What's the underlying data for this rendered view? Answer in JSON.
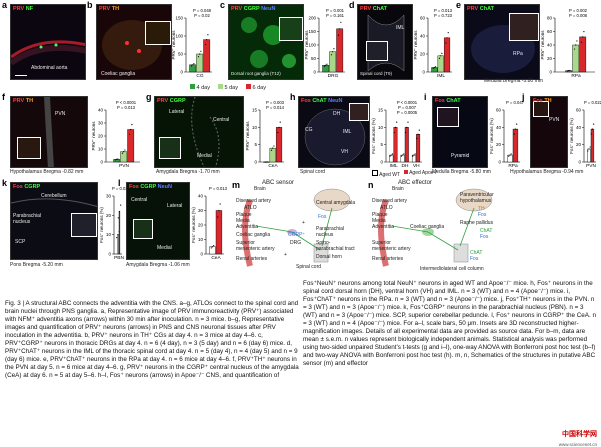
{
  "panels": {
    "a": {
      "letter": "a",
      "label1": "PRV",
      "label2": "NF",
      "label3": "Abdominal aorta",
      "colors": {
        "l1": "#ff4040",
        "l2": "#40ff40"
      }
    },
    "b": {
      "letter": "b",
      "label1": "PRV",
      "label2": "TH",
      "region": "Coeliac ganglia",
      "legend": [
        "4 day",
        "5 day",
        "6 day"
      ],
      "legend_colors": [
        "#2e9e3e",
        "#a8d88a",
        "#d8282c"
      ]
    },
    "c": {
      "letter": "c",
      "label1": "PRV",
      "label2": "CGRP",
      "label3": "NeuN",
      "region": "Dorsal root ganglia (T12)"
    },
    "d": {
      "letter": "d",
      "label1": "PRV",
      "label2": "ChAT",
      "region": "Spinal cord (T9)",
      "lbl_iml": "IML"
    },
    "e": {
      "letter": "e",
      "label1": "PRV",
      "label2": "ChAT",
      "region": "Medulla Bregma -5.80 mm",
      "lbl_rpa": "RPa"
    },
    "f": {
      "letter": "f",
      "label1": "PRV",
      "label2": "TH",
      "region": "Hypothalamus Bregma -0.82 mm",
      "lbl": "PVN"
    },
    "g": {
      "letter": "g",
      "label1": "PRV",
      "label2": "CGRP",
      "region": "Amygdala Bregma -1.70 mm",
      "lbl_lat": "Lateral",
      "lbl_cen": "Central",
      "lbl_med": "Medial"
    },
    "h": {
      "letter": "h",
      "label1": "Fos",
      "label2": "ChAT",
      "label3": "NeuN",
      "region": "Spinal cord",
      "lbl_dh": "DH",
      "lbl_iml": "IML",
      "lbl_cg": "CG",
      "lbl_vh": "VH",
      "legend": [
        "Aged WT",
        "Aged Apoe-/-"
      ]
    },
    "i": {
      "letter": "i",
      "label1": "Fos",
      "label2": "ChAT",
      "region": "Medulla Bregma -5.80 mm",
      "lbl": "Pyramid"
    },
    "j": {
      "letter": "j",
      "label1": "Fos",
      "label2": "TH",
      "region": "Hypothalamus Bregma -0.94 mm",
      "lbl": "PVN"
    },
    "k": {
      "letter": "k",
      "label1": "Fos",
      "label2": "CGRP",
      "region": "Pons Bregma -5.20 mm",
      "lbl_cb": "Cerebellum",
      "lbl_pbn": "Parabrachial nucleus",
      "lbl_scp": "SCP"
    },
    "l": {
      "letter": "l",
      "label1": "Fos",
      "label2": "CGRP",
      "label3": "NeuN",
      "region": "Amygdala Bregma -1.06 mm",
      "lbl_cen": "Central",
      "lbl_lat": "Lateral",
      "lbl_med": "Medial"
    },
    "m": {
      "letter": "m",
      "title": "ABC sensor"
    },
    "n": {
      "letter": "n",
      "title": "ABC effector"
    }
  },
  "chart_data": [
    {
      "panel": "b",
      "type": "bar",
      "ylabel": "PRV⁺ neurons",
      "categories": [
        "CG"
      ],
      "series": [
        {
          "name": "4 day",
          "values": [
            20
          ]
        },
        {
          "name": "5 day",
          "values": [
            50
          ]
        },
        {
          "name": "6 day",
          "values": [
            90
          ]
        }
      ],
      "ylim": [
        0,
        150
      ],
      "yticks": [
        "0",
        "50",
        "100",
        "150"
      ],
      "pvals": [
        "P = 0.048",
        "P = 0.02"
      ]
    },
    {
      "panel": "c",
      "type": "bar",
      "ylabel": "PRV⁺ neurons",
      "categories": [
        "DRG"
      ],
      "series": [
        {
          "name": "4 day",
          "values": [
            25
          ]
        },
        {
          "name": "5 day",
          "values": [
            75
          ]
        },
        {
          "name": "6 day",
          "values": [
            160
          ]
        }
      ],
      "ylim": [
        0,
        200
      ],
      "yticks": [
        "0",
        "50",
        "100",
        "150",
        "200"
      ],
      "pvals": [
        "P = 0.001",
        "P = 0.161"
      ]
    },
    {
      "panel": "d",
      "type": "bar",
      "ylabel": "PRV⁺ neurons",
      "categories": [
        "IML"
      ],
      "series": [
        {
          "name": "4 day",
          "values": [
            5
          ]
        },
        {
          "name": "5 day",
          "values": [
            18
          ]
        },
        {
          "name": "6 day",
          "values": [
            38
          ]
        }
      ],
      "ylim": [
        0,
        60
      ],
      "yticks": [
        "0",
        "20",
        "40",
        "60"
      ],
      "pvals": [
        "P = 0.013",
        "P = 0.723"
      ]
    },
    {
      "panel": "e",
      "type": "bar",
      "ylabel": "PRV⁺ neurons",
      "categories": [
        "RPa"
      ],
      "series": [
        {
          "name": "4 day",
          "values": [
            2
          ]
        },
        {
          "name": "5 day",
          "values": [
            40
          ]
        },
        {
          "name": "6 day",
          "values": [
            52
          ]
        }
      ],
      "ylim": [
        0,
        80
      ],
      "yticks": [
        "0",
        "20",
        "40",
        "60",
        "80"
      ],
      "pvals": [
        "P = 0.002",
        "P = 0.008"
      ]
    },
    {
      "panel": "f",
      "type": "bar",
      "ylabel": "PRV⁺ neurons",
      "categories": [
        "PVN"
      ],
      "series": [
        {
          "name": "4 day",
          "values": [
            2
          ]
        },
        {
          "name": "5 day",
          "values": [
            8
          ]
        },
        {
          "name": "6 day",
          "values": [
            25
          ]
        }
      ],
      "ylim": [
        0,
        40
      ],
      "yticks": [
        "0",
        "10",
        "20",
        "30",
        "40"
      ],
      "pvals": [
        "P < 0.0001",
        "P = 0.013"
      ]
    },
    {
      "panel": "g",
      "type": "bar",
      "ylabel": "PRV⁺ neurons",
      "categories": [
        "CeA"
      ],
      "series": [
        {
          "name": "4 day",
          "values": [
            0
          ]
        },
        {
          "name": "5 day",
          "values": [
            4
          ]
        },
        {
          "name": "6 day",
          "values": [
            10
          ]
        }
      ],
      "ylim": [
        0,
        15
      ],
      "yticks": [
        "0",
        "5",
        "10",
        "15"
      ],
      "pvals": [
        "P = 0.003",
        "P = 0.014"
      ]
    },
    {
      "panel": "h",
      "type": "bar",
      "ylabel": "Fos⁺ neurons (%)",
      "categories": [
        "IML",
        "DH",
        "VH"
      ],
      "series": [
        {
          "name": "Aged WT",
          "values": [
            2,
            2,
            2
          ]
        },
        {
          "name": "Aged Apoe-/-",
          "values": [
            10,
            10,
            8
          ]
        }
      ],
      "ylim": [
        0,
        15
      ],
      "yticks": [
        "0",
        "5",
        "10",
        "15"
      ],
      "pvals": [
        "P < 0.0001",
        "P = 0.007",
        "P = 0.0005"
      ]
    },
    {
      "panel": "i",
      "type": "bar",
      "ylabel": "Fos⁺ neurons (%)",
      "categories": [
        "RPa"
      ],
      "series": [
        {
          "name": "Aged WT",
          "values": [
            8
          ]
        },
        {
          "name": "Aged Apoe-/-",
          "values": [
            38
          ]
        }
      ],
      "ylim": [
        0,
        60
      ],
      "yticks": [
        "0",
        "20",
        "40",
        "60"
      ],
      "pvals": [
        "P = 0.047"
      ]
    },
    {
      "panel": "j",
      "type": "bar",
      "ylabel": "Fos⁺ neurons (%)",
      "categories": [
        "PVN"
      ],
      "series": [
        {
          "name": "Aged WT",
          "values": [
            15
          ]
        },
        {
          "name": "Aged Apoe-/-",
          "values": [
            38
          ]
        }
      ],
      "ylim": [
        0,
        60
      ],
      "yticks": [
        "0",
        "20",
        "40",
        "60"
      ],
      "pvals": [
        "P = 0.022"
      ]
    },
    {
      "panel": "k",
      "type": "bar",
      "ylabel": "Fos⁺ neurons (%)",
      "categories": [
        "PBN"
      ],
      "series": [
        {
          "name": "Aged WT",
          "values": [
            10
          ]
        },
        {
          "name": "Aged Apoe-/-",
          "values": [
            22
          ]
        }
      ],
      "ylim": [
        0,
        30
      ],
      "yticks": [
        "0",
        "10",
        "20",
        "30"
      ],
      "pvals": [
        "P = 0.025"
      ]
    },
    {
      "panel": "l",
      "type": "bar",
      "ylabel": "Fos⁺ neurons (%)",
      "categories": [
        "CeA"
      ],
      "series": [
        {
          "name": "Aged WT",
          "values": [
            5
          ]
        },
        {
          "name": "Aged Apoe-/-",
          "values": [
            30
          ]
        }
      ],
      "ylim": [
        0,
        40
      ],
      "yticks": [
        "0",
        "10",
        "20",
        "30",
        "40"
      ],
      "pvals": [
        "P = 0.013"
      ]
    }
  ],
  "schematic_m": {
    "brain": "Brain",
    "plaque": "Plaque",
    "media": "Media",
    "adventitia": "Adventitia",
    "coeliac": "Coeliac ganglia",
    "superior": "Superior mesenteric artery",
    "renal": "Renal arteries",
    "diseased": "Diseased artery",
    "atlo": "ATLO",
    "amygdala": "Central amygdala",
    "parabrachial": "Parabrachial nucleus",
    "spinal": "Spinal cord",
    "drg": "DRG",
    "spt": "Spino- parabrachial tract",
    "dorsal": "Dorsal horn",
    "cgrp": "CGRP⁺",
    "fos": "Fos",
    "plus1": "+",
    "plus2": "+"
  },
  "schematic_n": {
    "brain": "Brain",
    "plaque": "Plaque",
    "media": "Media",
    "adventitia": "Adventitia",
    "coeliac": "Coeliac ganglia",
    "superior": "Superior mesenteric artery",
    "renal": "Renal arteries",
    "diseased": "Diseased artery",
    "atlo": "ATLO",
    "pvn": "Paraventricular hypothalamus",
    "th": "TH",
    "fos1": "Fos",
    "raphe": "Raphe pallidus",
    "chat": "ChAT",
    "fos2": "Fos",
    "chat2": "ChAT",
    "fos3": "Fos",
    "iml": "Intermediolateral cell column"
  },
  "caption_left": "Fig. 3 | A structural ABC connects the adventitia with the CNS. a–g, ATLOs connect to the spinal cord and brain nuclei through PNS ganglia. a, Representative image of PRV immunoreactivity (PRV⁺) associated with NFM⁺ adventitia axons (arrows) within 30 min after inoculation. n = 3 mice. b–g, Representative images and quantification of PRV⁺ neurons (arrows) in PNS and CNS neuronal tissues after PRV inoculation in the adventitia. b, PRV⁺ neurons in TH⁺ CGs at day 4. n = 3 mice at day 4–6. c, PRV⁺CGRP⁺ neurons in thoracic DRGs at day 4. n = 6 (4 day), n = 3 (5 day) and n = 6 (day 6) mice. d, PRV⁺ChAT⁺ neurons in the IML of the thoracic spinal cord at day 4. n = 5 (day 4), n = 4 (day 5) and n = 9 (day 6) mice. e, PRV⁺ChAT⁺ neurons in the RPa at day 4. n = 6 mice at day 4–6. f, PRV⁺TH⁺ neurons in the PVN at day 5. n = 6 mice at day 4–6. g, PRV⁺ neurons in the CGRP⁺ central nucleus of the amygdala (CeA) at day 6. n = 5 at day 5–6. h–l, Fos⁺ neurons (arrows) in Apoe⁻/⁻ CNS, and quantification of",
  "caption_right": "Fos⁺NeuN⁺ neurons among total NeuN⁺ neurons in aged WT and Apoe⁻/⁻ mice. h, Fos⁺ neurons in the spinal cord dorsal horn (DH), ventral horn (VH) and IML. n = 3 (WT) and n = 4 (Apoe⁻/⁻) mice. i, Fos⁺ChAT⁺ neurons in the RPa. n = 3 (WT) and n = 3 (Apoe⁻/⁻) mice. j, Fos⁺TH⁺ neurons in the PVN. n = 3 (WT) and n = 3 (Apoe⁻/⁻) mice. k, Fos⁺CGRP⁺ neurons in the parabrachial nucleus (PBN). n = 3 (WT) and n = 3 (Apoe⁻/⁻) mice. SCP, superior cerebellar peduncle. l, Fos⁺ neurons in CGRP⁺ the CeA. n = 3 (WT) and n = 4 (Apoe⁻/⁻) mice. For a–l, scale bars, 50 μm. Insets are 3D reconstructed higher-magnification images. Details of all experimental data are provided as source data. For b–m, data are mean ± s.e.m. n values represent biologically independent animals. Statistical analysis was performed using two-sided unpaired Student’s t-tests (g and i–l), one-way ANOVA with Bonferroni post hoc test (b–f) and two-way ANOVA with Bonferroni post hoc test (h). m, n, Schematics of the structures in putative ABC sensor (m) and effector",
  "watermark": "中国科学网",
  "watermark_sub": "www.sciencenet.cn"
}
